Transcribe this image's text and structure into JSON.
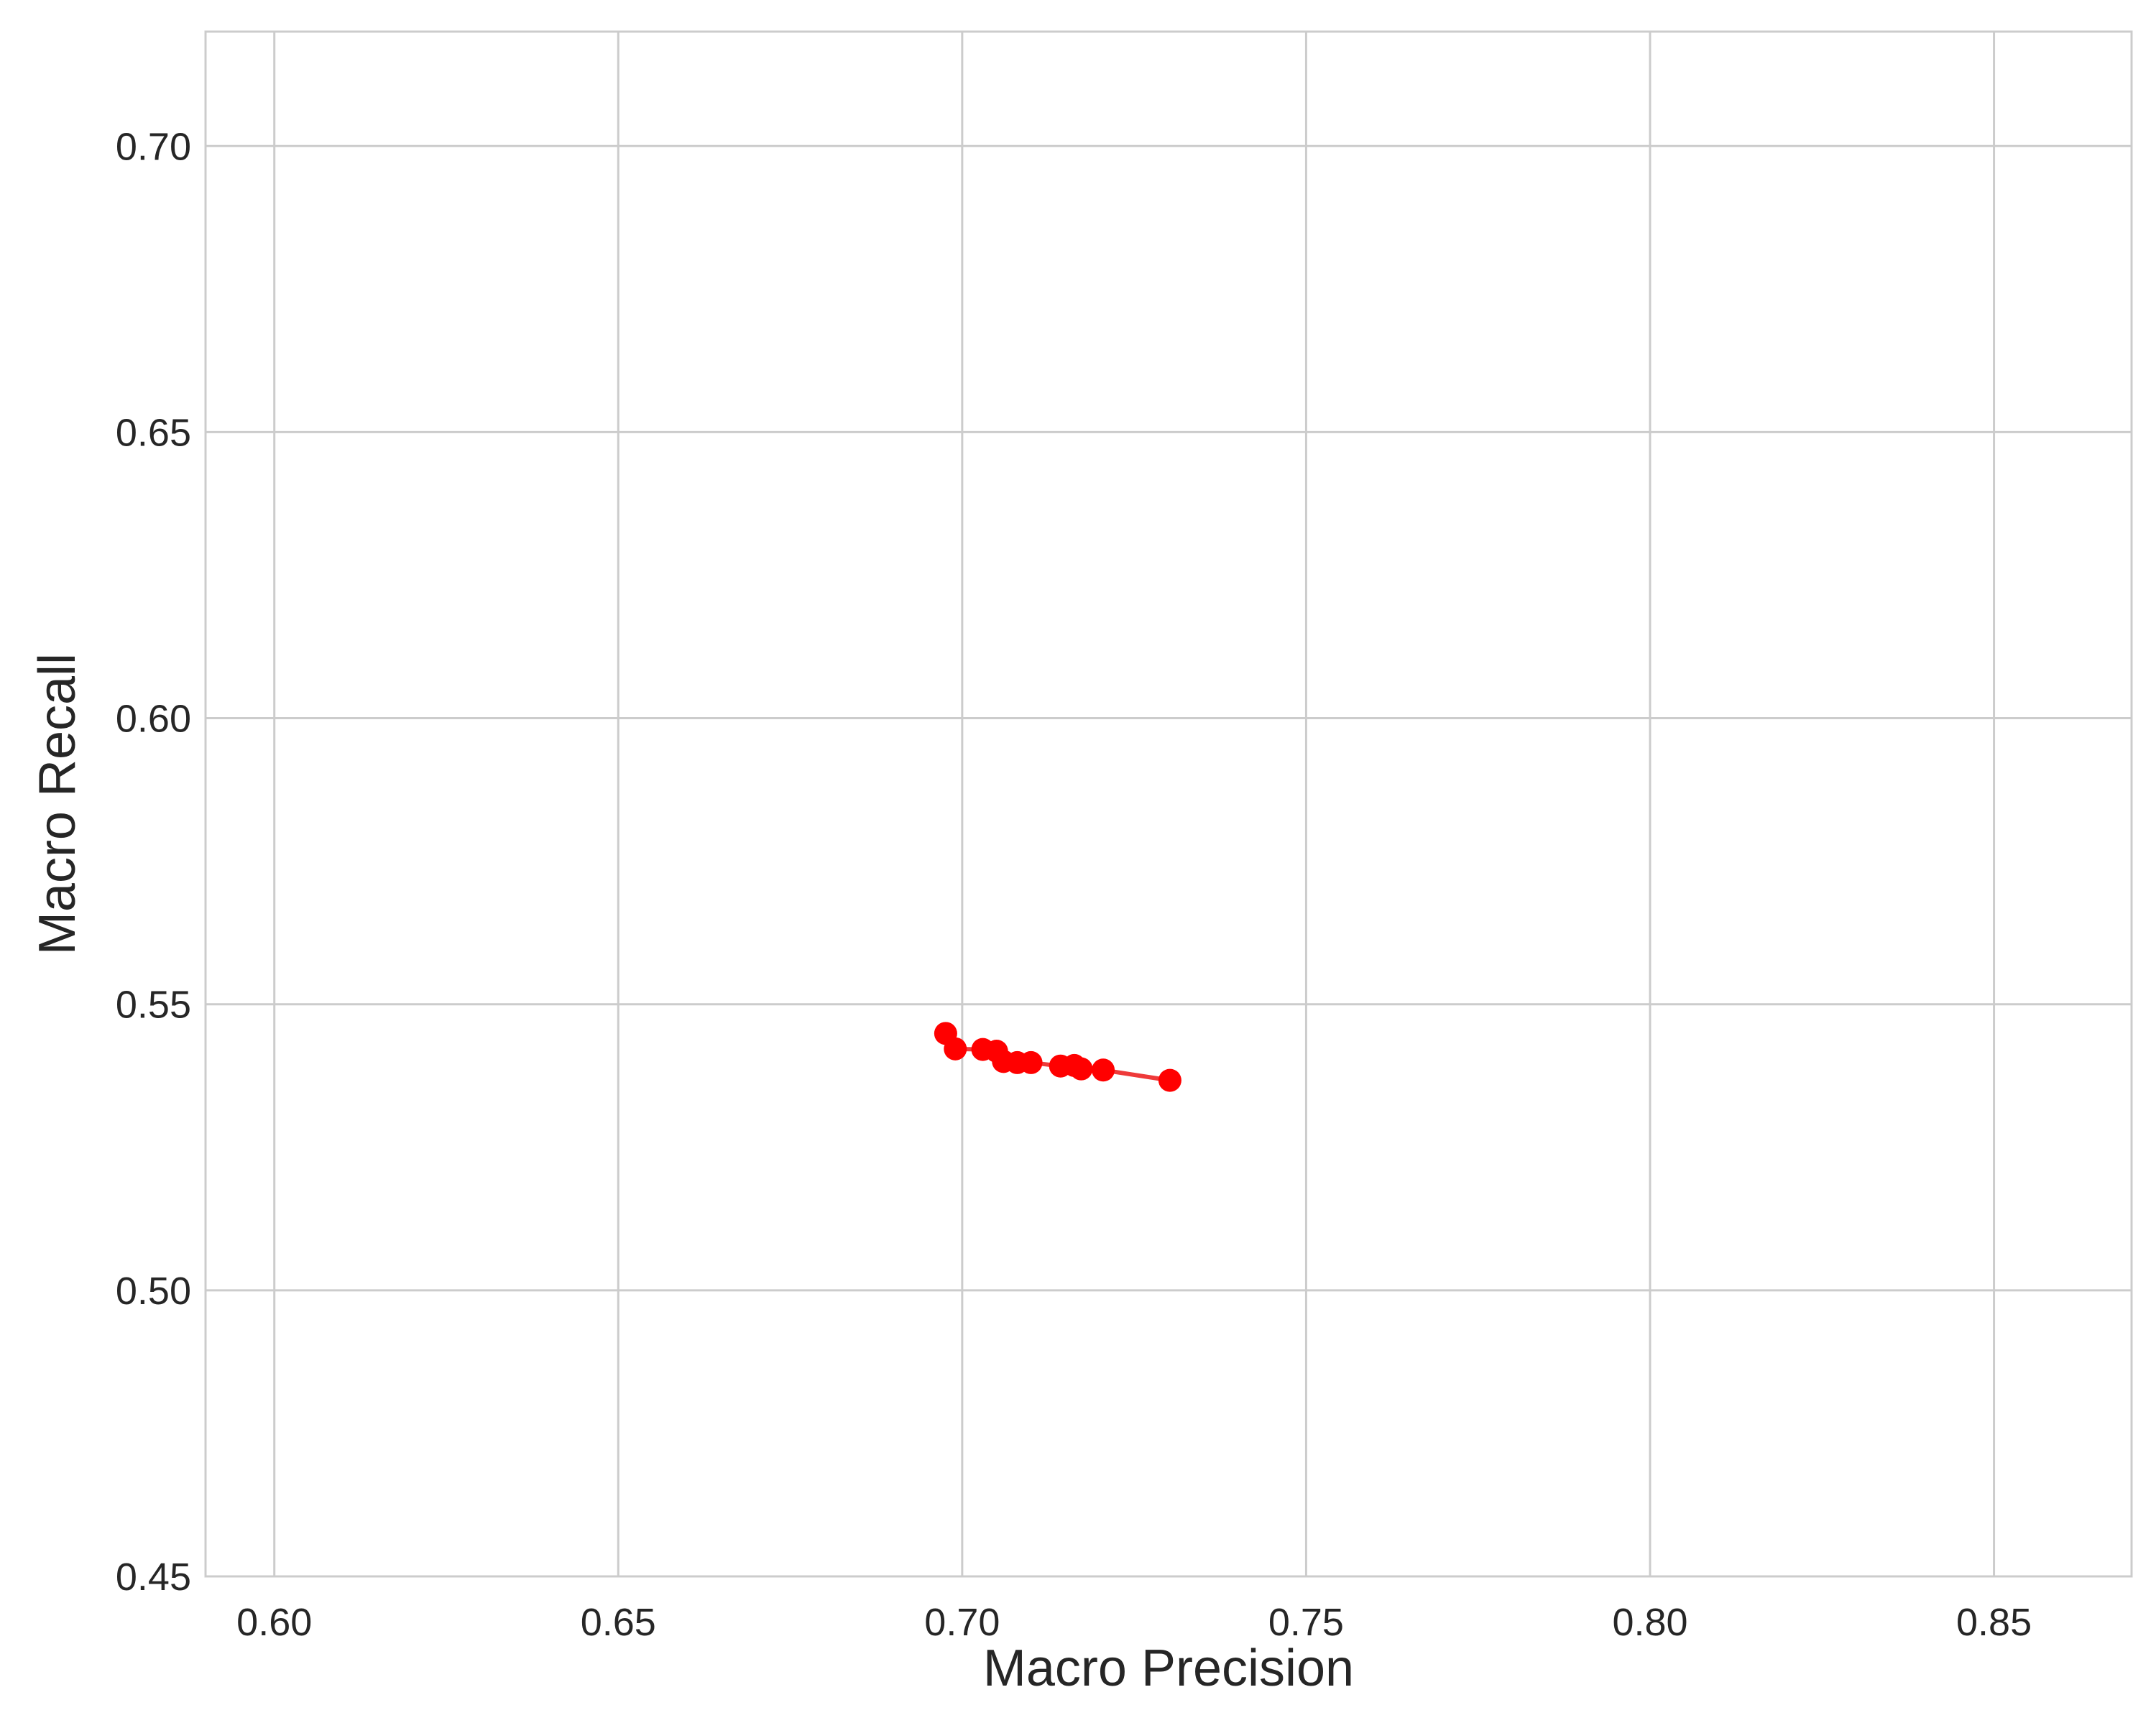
{
  "chart_data": {
    "type": "line",
    "title": "",
    "xlabel": "Macro Precision",
    "ylabel": "Macro Recall",
    "xlim": [
      0.59,
      0.87
    ],
    "ylim": [
      0.45,
      0.72
    ],
    "x_ticks": [
      "0.60",
      "0.65",
      "0.70",
      "0.75",
      "0.80",
      "0.85"
    ],
    "y_ticks": [
      "0.45",
      "0.50",
      "0.55",
      "0.60",
      "0.65",
      "0.70"
    ],
    "grid": true,
    "legend": "none",
    "series": [
      {
        "color": "#ff0000",
        "line_color": "#ee3a3a",
        "marker": "circle",
        "points": [
          [
            0.6976,
            0.5449
          ],
          [
            0.699,
            0.5422
          ],
          [
            0.703,
            0.5421
          ],
          [
            0.705,
            0.5418
          ],
          [
            0.706,
            0.54
          ],
          [
            0.708,
            0.5398
          ],
          [
            0.71,
            0.5398
          ],
          [
            0.7143,
            0.5392
          ],
          [
            0.7163,
            0.5393
          ],
          [
            0.7173,
            0.5387
          ],
          [
            0.7205,
            0.5385
          ],
          [
            0.7302,
            0.5367
          ]
        ]
      }
    ]
  }
}
